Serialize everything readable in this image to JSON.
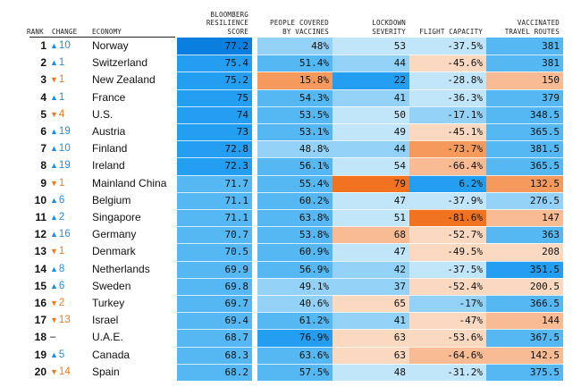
{
  "headers": {
    "rank": "RANK",
    "change": "CHANGE",
    "economy": "ECONOMY",
    "score": [
      "BLOOMBERG",
      "RESILIENCE",
      "SCORE"
    ],
    "vaccines": [
      "PEOPLE COVERED",
      "BY VACCINES"
    ],
    "lockdown": [
      "LOCKDOWN",
      "SEVERITY"
    ],
    "flight": [
      "FLIGHT CAPACITY"
    ],
    "routes": [
      "VACCINATED",
      "TRAVEL ROUTES"
    ]
  },
  "colors": {
    "up": "#1a8fe0",
    "down": "#f07a1a",
    "scale": {
      "b5": "#0a7fe0",
      "b4": "#249ef0",
      "b3": "#56b8f2",
      "b2": "#93d2f6",
      "b1": "#c2e6f9",
      "o1": "#fbd9c0",
      "o2": "#f8bb93",
      "o3": "#f59a5c",
      "o4": "#f2731f"
    }
  },
  "chart_data": {
    "type": "table",
    "columns": [
      "Rank",
      "Change",
      "Economy",
      "Bloomberg Resilience Score",
      "People Covered by Vaccines",
      "Lockdown Severity",
      "Flight Capacity",
      "Vaccinated Travel Routes"
    ],
    "rows": [
      {
        "rank": "1",
        "dir": "up",
        "change": "10",
        "economy": "Norway",
        "score": "77.2",
        "vaccines": "48%",
        "lockdown": "53",
        "flight": "-37.5%",
        "routes": "381",
        "c": [
          "b5",
          "b2",
          "b1",
          "b1",
          "b3"
        ]
      },
      {
        "rank": "2",
        "dir": "up",
        "change": "1",
        "economy": "Switzerland",
        "score": "75.4",
        "vaccines": "51.4%",
        "lockdown": "44",
        "flight": "-45.6%",
        "routes": "381",
        "c": [
          "b4",
          "b3",
          "b2",
          "o1",
          "b3"
        ]
      },
      {
        "rank": "3",
        "dir": "down",
        "change": "1",
        "economy": "New Zealand",
        "score": "75.2",
        "vaccines": "15.8%",
        "lockdown": "22",
        "flight": "-28.8%",
        "routes": "150",
        "c": [
          "b4",
          "o3",
          "b4",
          "b1",
          "o2"
        ]
      },
      {
        "rank": "4",
        "dir": "up",
        "change": "1",
        "economy": "France",
        "score": "75",
        "vaccines": "54.3%",
        "lockdown": "41",
        "flight": "-36.3%",
        "routes": "379",
        "c": [
          "b4",
          "b3",
          "b2",
          "b1",
          "b3"
        ]
      },
      {
        "rank": "5",
        "dir": "down",
        "change": "4",
        "economy": "U.S.",
        "score": "74",
        "vaccines": "53.5%",
        "lockdown": "50",
        "flight": "-17.1%",
        "routes": "348.5",
        "c": [
          "b4",
          "b3",
          "b1",
          "b2",
          "b3"
        ]
      },
      {
        "rank": "6",
        "dir": "up",
        "change": "19",
        "economy": "Austria",
        "score": "73",
        "vaccines": "53.1%",
        "lockdown": "49",
        "flight": "-45.1%",
        "routes": "365.5",
        "c": [
          "b4",
          "b3",
          "b1",
          "o1",
          "b3"
        ]
      },
      {
        "rank": "7",
        "dir": "up",
        "change": "10",
        "economy": "Finland",
        "score": "72.8",
        "vaccines": "48.8%",
        "lockdown": "44",
        "flight": "-73.7%",
        "routes": "381.5",
        "c": [
          "b4",
          "b2",
          "b2",
          "o3",
          "b3"
        ]
      },
      {
        "rank": "8",
        "dir": "up",
        "change": "19",
        "economy": "Ireland",
        "score": "72.3",
        "vaccines": "56.1%",
        "lockdown": "54",
        "flight": "-66.4%",
        "routes": "365.5",
        "c": [
          "b4",
          "b3",
          "b1",
          "o2",
          "b3"
        ]
      },
      {
        "rank": "9",
        "dir": "down",
        "change": "1",
        "economy": "Mainland China",
        "score": "71.7",
        "vaccines": "55.4%",
        "lockdown": "79",
        "flight": "6.2%",
        "routes": "132.5",
        "c": [
          "b3",
          "b3",
          "o4",
          "b4",
          "o3"
        ]
      },
      {
        "rank": "10",
        "dir": "up",
        "change": "6",
        "economy": "Belgium",
        "score": "71.1",
        "vaccines": "60.2%",
        "lockdown": "47",
        "flight": "-37.9%",
        "routes": "276.5",
        "c": [
          "b3",
          "b3",
          "b1",
          "b1",
          "b2"
        ]
      },
      {
        "rank": "11",
        "dir": "up",
        "change": "2",
        "economy": "Singapore",
        "score": "71.1",
        "vaccines": "63.8%",
        "lockdown": "51",
        "flight": "-81.6%",
        "routes": "147",
        "c": [
          "b3",
          "b3",
          "b1",
          "o4",
          "o2"
        ]
      },
      {
        "rank": "12",
        "dir": "up",
        "change": "16",
        "economy": "Germany",
        "score": "70.7",
        "vaccines": "53.8%",
        "lockdown": "68",
        "flight": "-52.7%",
        "routes": "363",
        "c": [
          "b3",
          "b3",
          "o2",
          "o1",
          "b3"
        ]
      },
      {
        "rank": "13",
        "dir": "down",
        "change": "1",
        "economy": "Denmark",
        "score": "70.5",
        "vaccines": "60.9%",
        "lockdown": "47",
        "flight": "-49.5%",
        "routes": "208",
        "c": [
          "b3",
          "b3",
          "b1",
          "o1",
          "o1"
        ]
      },
      {
        "rank": "14",
        "dir": "up",
        "change": "8",
        "economy": "Netherlands",
        "score": "69.9",
        "vaccines": "56.9%",
        "lockdown": "42",
        "flight": "-37.5%",
        "routes": "351.5",
        "c": [
          "b3",
          "b3",
          "b2",
          "b1",
          "b4"
        ]
      },
      {
        "rank": "15",
        "dir": "up",
        "change": "6",
        "economy": "Sweden",
        "score": "69.8",
        "vaccines": "49.1%",
        "lockdown": "37",
        "flight": "-52.4%",
        "routes": "200.5",
        "c": [
          "b3",
          "b2",
          "b2",
          "o1",
          "o1"
        ]
      },
      {
        "rank": "16",
        "dir": "down",
        "change": "2",
        "economy": "Turkey",
        "score": "69.7",
        "vaccines": "40.6%",
        "lockdown": "65",
        "flight": "-17%",
        "routes": "366.5",
        "c": [
          "b3",
          "b2",
          "o1",
          "b2",
          "b3"
        ]
      },
      {
        "rank": "17",
        "dir": "down",
        "change": "13",
        "economy": "Israel",
        "score": "69.4",
        "vaccines": "61.2%",
        "lockdown": "41",
        "flight": "-47%",
        "routes": "144",
        "c": [
          "b3",
          "b3",
          "b2",
          "o1",
          "o2"
        ]
      },
      {
        "rank": "18",
        "dir": "none",
        "change": "–",
        "economy": "U.A.E.",
        "score": "68.7",
        "vaccines": "76.9%",
        "lockdown": "63",
        "flight": "-53.6%",
        "routes": "367.5",
        "c": [
          "b3",
          "b4",
          "o1",
          "o1",
          "b3"
        ]
      },
      {
        "rank": "19",
        "dir": "up",
        "change": "5",
        "economy": "Canada",
        "score": "68.3",
        "vaccines": "63.6%",
        "lockdown": "63",
        "flight": "-64.6%",
        "routes": "142.5",
        "c": [
          "b3",
          "b3",
          "o1",
          "o2",
          "o2"
        ]
      },
      {
        "rank": "20",
        "dir": "down",
        "change": "14",
        "economy": "Spain",
        "score": "68.2",
        "vaccines": "57.5%",
        "lockdown": "48",
        "flight": "-31.2%",
        "routes": "375.5",
        "c": [
          "b3",
          "b3",
          "b1",
          "b1",
          "b3"
        ]
      }
    ]
  }
}
